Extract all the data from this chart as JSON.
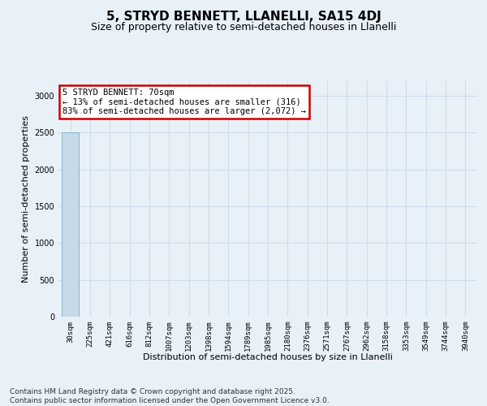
{
  "title": "5, STRYD BENNETT, LLANELLI, SA15 4DJ",
  "subtitle": "Size of property relative to semi-detached houses in Llanelli",
  "xlabel": "Distribution of semi-detached houses by size in Llanelli",
  "ylabel": "Number of semi-detached properties",
  "annotation_title": "5 STRYD BENNETT: 70sqm",
  "annotation_line1": "← 13% of semi-detached houses are smaller (316)",
  "annotation_line2": "83% of semi-detached houses are larger (2,072) →",
  "footer_line1": "Contains HM Land Registry data © Crown copyright and database right 2025.",
  "footer_line2": "Contains public sector information licensed under the Open Government Licence v3.0.",
  "categories": [
    "30sqm",
    "225sqm",
    "421sqm",
    "616sqm",
    "812sqm",
    "1007sqm",
    "1203sqm",
    "1398sqm",
    "1594sqm",
    "1789sqm",
    "1985sqm",
    "2180sqm",
    "2376sqm",
    "2571sqm",
    "2767sqm",
    "2962sqm",
    "3158sqm",
    "3353sqm",
    "3549sqm",
    "3744sqm",
    "3940sqm"
  ],
  "values": [
    2500,
    0,
    0,
    0,
    0,
    0,
    0,
    0,
    0,
    0,
    0,
    0,
    0,
    0,
    0,
    0,
    0,
    0,
    0,
    0,
    0
  ],
  "bar_color": "#c8d9e8",
  "bar_edge_color": "#7aaac8",
  "ylim": [
    0,
    3200
  ],
  "yticks": [
    0,
    500,
    1000,
    1500,
    2000,
    2500,
    3000
  ],
  "grid_color": "#c8d8e8",
  "background_color": "#e8f0f8",
  "annotation_box_facecolor": "#ffffff",
  "annotation_box_edgecolor": "#cc0000",
  "title_fontsize": 11,
  "subtitle_fontsize": 9,
  "axis_label_fontsize": 8,
  "tick_fontsize": 6.5,
  "annotation_fontsize": 7.5,
  "footer_fontsize": 6.5
}
